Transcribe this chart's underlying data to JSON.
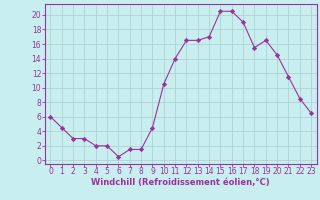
{
  "x": [
    0,
    1,
    2,
    3,
    4,
    5,
    6,
    7,
    8,
    9,
    10,
    11,
    12,
    13,
    14,
    15,
    16,
    17,
    18,
    19,
    20,
    21,
    22,
    23
  ],
  "y": [
    6,
    4.5,
    3,
    3,
    2,
    2,
    0.5,
    1.5,
    1.5,
    4.5,
    10.5,
    14,
    16.5,
    16.5,
    17,
    20.5,
    20.5,
    19,
    15.5,
    16.5,
    14.5,
    11.5,
    8.5,
    6.5
  ],
  "line_color": "#993399",
  "marker": "D",
  "marker_size": 2.2,
  "bg_color": "#c8eef0",
  "grid_color": "#aacccc",
  "xlabel": "Windchill (Refroidissement éolien,°C)",
  "xlabel_color": "#993399",
  "tick_color": "#993399",
  "label_color": "#993399",
  "spine_color": "#993399",
  "xlim": [
    -0.5,
    23.5
  ],
  "ylim": [
    -0.5,
    21.5
  ],
  "yticks": [
    0,
    2,
    4,
    6,
    8,
    10,
    12,
    14,
    16,
    18,
    20
  ],
  "xticks": [
    0,
    1,
    2,
    3,
    4,
    5,
    6,
    7,
    8,
    9,
    10,
    11,
    12,
    13,
    14,
    15,
    16,
    17,
    18,
    19,
    20,
    21,
    22,
    23
  ],
  "tick_fontsize": 5.5,
  "xlabel_fontsize": 6.0
}
